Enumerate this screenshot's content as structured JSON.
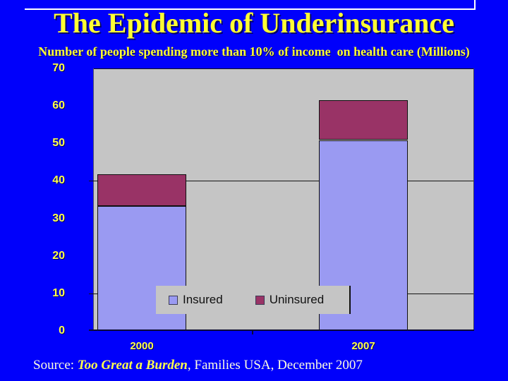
{
  "slide": {
    "title": "The Epidemic of Underinsurance",
    "subtitle": "Number of people spending more than 10% of income  on health care (Millions)",
    "source": {
      "prefix": "Source: ",
      "report": "Too Great a Burden",
      "suffix": ", Families USA, December 2007"
    }
  },
  "colors": {
    "background": "#0000fb",
    "title_yellow": "#ffff33",
    "axis_label_yellow": "#ffff4d",
    "plot_background": "#c5c5c5",
    "insured_bar": "#9a9af2",
    "uninsured_bar": "#993366",
    "legend_text": "#101010",
    "gridline": "#141414",
    "axis_line": "#0a0a35",
    "title_shadow": "#000066",
    "border_line": "#ffffff"
  },
  "chart_data": {
    "type": "bar",
    "stacked": true,
    "title": "Number of people spending more than 10% of income on health care (Millions)",
    "xlabel": "",
    "ylabel": "",
    "categories": [
      "2000",
      "2007"
    ],
    "series": [
      {
        "name": "Insured",
        "color": "#9a9af2",
        "values": [
          33.3,
          50.9
        ]
      },
      {
        "name": "Uninsured",
        "color": "#993366",
        "values": [
          8.4,
          10.7
        ]
      }
    ],
    "totals": [
      41.7,
      61.6
    ],
    "ylim": [
      0,
      70
    ],
    "yticks": [
      0,
      10,
      20,
      30,
      40,
      50,
      60,
      70
    ],
    "gridlines": [
      10,
      40,
      70
    ],
    "grid": "horizontal only",
    "legend_position": "overlay bottom center of plot",
    "plot_bg": "#c5c5c5"
  }
}
